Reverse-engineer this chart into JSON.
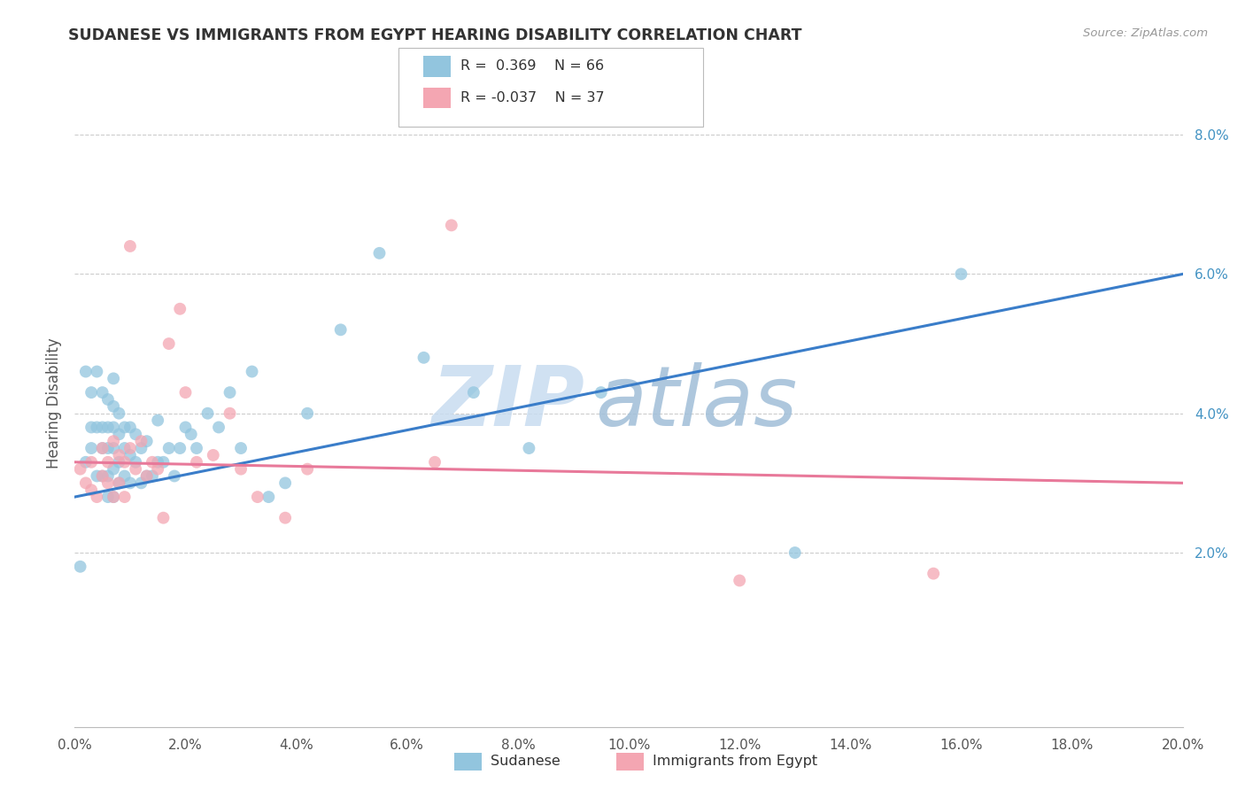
{
  "title": "SUDANESE VS IMMIGRANTS FROM EGYPT HEARING DISABILITY CORRELATION CHART",
  "source": "Source: ZipAtlas.com",
  "ylabel": "Hearing Disability",
  "xlim": [
    0.0,
    0.2
  ],
  "ylim": [
    -0.005,
    0.088
  ],
  "xticks": [
    0.0,
    0.02,
    0.04,
    0.06,
    0.08,
    0.1,
    0.12,
    0.14,
    0.16,
    0.18,
    0.2
  ],
  "yticks_right": [
    0.02,
    0.04,
    0.06,
    0.08
  ],
  "ytick_labels_right": [
    "2.0%",
    "4.0%",
    "6.0%",
    "8.0%"
  ],
  "xtick_labels": [
    "0.0%",
    "2.0%",
    "4.0%",
    "6.0%",
    "8.0%",
    "10.0%",
    "12.0%",
    "14.0%",
    "16.0%",
    "18.0%",
    "20.0%"
  ],
  "legend_label1": "Sudanese",
  "legend_label2": "Immigrants from Egypt",
  "color_blue": "#92C5DE",
  "color_pink": "#F4A6B2",
  "color_blue_line": "#3A7DC9",
  "color_pink_line": "#E8799A",
  "watermark_zip": "ZIP",
  "watermark_atlas": "atlas",
  "blue_scatter_x": [
    0.001,
    0.002,
    0.002,
    0.003,
    0.003,
    0.003,
    0.004,
    0.004,
    0.004,
    0.005,
    0.005,
    0.005,
    0.005,
    0.006,
    0.006,
    0.006,
    0.006,
    0.006,
    0.007,
    0.007,
    0.007,
    0.007,
    0.007,
    0.007,
    0.008,
    0.008,
    0.008,
    0.008,
    0.009,
    0.009,
    0.009,
    0.01,
    0.01,
    0.01,
    0.011,
    0.011,
    0.012,
    0.012,
    0.013,
    0.013,
    0.014,
    0.015,
    0.015,
    0.016,
    0.017,
    0.018,
    0.019,
    0.02,
    0.021,
    0.022,
    0.024,
    0.026,
    0.028,
    0.03,
    0.032,
    0.035,
    0.038,
    0.042,
    0.048,
    0.055,
    0.063,
    0.072,
    0.082,
    0.095,
    0.13,
    0.16
  ],
  "blue_scatter_y": [
    0.018,
    0.033,
    0.046,
    0.035,
    0.038,
    0.043,
    0.031,
    0.038,
    0.046,
    0.031,
    0.035,
    0.038,
    0.043,
    0.028,
    0.031,
    0.035,
    0.038,
    0.042,
    0.028,
    0.032,
    0.035,
    0.038,
    0.041,
    0.045,
    0.03,
    0.033,
    0.037,
    0.04,
    0.031,
    0.035,
    0.038,
    0.03,
    0.034,
    0.038,
    0.033,
    0.037,
    0.03,
    0.035,
    0.031,
    0.036,
    0.031,
    0.033,
    0.039,
    0.033,
    0.035,
    0.031,
    0.035,
    0.038,
    0.037,
    0.035,
    0.04,
    0.038,
    0.043,
    0.035,
    0.046,
    0.028,
    0.03,
    0.04,
    0.052,
    0.063,
    0.048,
    0.043,
    0.035,
    0.043,
    0.02,
    0.06
  ],
  "pink_scatter_x": [
    0.001,
    0.002,
    0.003,
    0.003,
    0.004,
    0.005,
    0.005,
    0.006,
    0.006,
    0.007,
    0.007,
    0.008,
    0.008,
    0.009,
    0.009,
    0.01,
    0.01,
    0.011,
    0.012,
    0.013,
    0.014,
    0.015,
    0.016,
    0.017,
    0.019,
    0.02,
    0.022,
    0.025,
    0.028,
    0.03,
    0.033,
    0.038,
    0.042,
    0.065,
    0.068,
    0.12,
    0.155
  ],
  "pink_scatter_y": [
    0.032,
    0.03,
    0.029,
    0.033,
    0.028,
    0.031,
    0.035,
    0.03,
    0.033,
    0.028,
    0.036,
    0.03,
    0.034,
    0.028,
    0.033,
    0.035,
    0.064,
    0.032,
    0.036,
    0.031,
    0.033,
    0.032,
    0.025,
    0.05,
    0.055,
    0.043,
    0.033,
    0.034,
    0.04,
    0.032,
    0.028,
    0.025,
    0.032,
    0.033,
    0.067,
    0.016,
    0.017
  ],
  "blue_line_x0": 0.0,
  "blue_line_y0": 0.028,
  "blue_line_x1": 0.2,
  "blue_line_y1": 0.06,
  "pink_line_x0": 0.0,
  "pink_line_y0": 0.033,
  "pink_line_x1": 0.2,
  "pink_line_y1": 0.03
}
